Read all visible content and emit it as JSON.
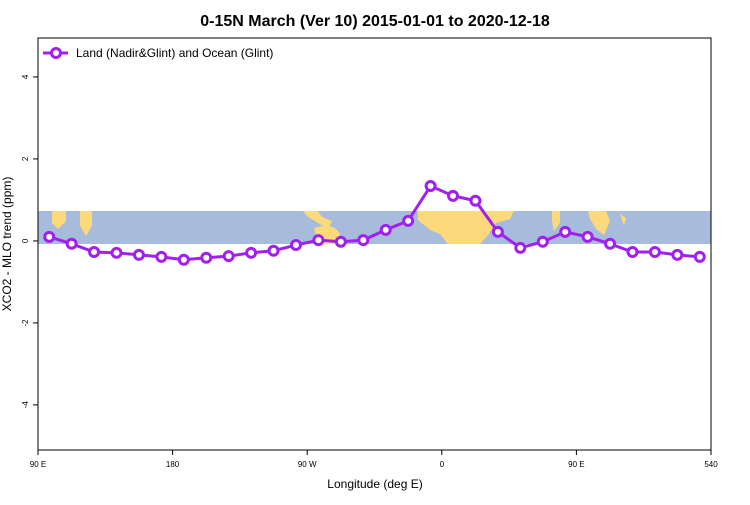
{
  "chart_data": {
    "type": "line",
    "title": "0-15N March (Ver 10)   2015-01-01 to 2020-12-18",
    "x_label": "Longitude (deg E)",
    "y_label": "XCO2 - MLO trend (ppm)",
    "x": [
      97.5,
      112.5,
      127.5,
      142.5,
      157.5,
      172.5,
      187.5,
      202.5,
      217.5,
      232.5,
      247.5,
      262.5,
      277.5,
      292.5,
      307.5,
      322.5,
      337.5,
      352.5,
      367.5,
      382.5,
      397.5,
      412.5,
      427.5,
      442.5,
      457.5,
      472.5,
      487.5,
      502.5,
      517.5,
      532.5
    ],
    "series": [
      {
        "name": "Land (Nadir&Glint) and Ocean (Glint)",
        "color": "#a020f0",
        "values": [
          0.1,
          -0.07,
          -0.27,
          -0.29,
          -0.34,
          -0.39,
          -0.46,
          -0.41,
          -0.37,
          -0.29,
          -0.24,
          -0.1,
          0.02,
          -0.02,
          0.02,
          0.27,
          0.49,
          1.34,
          1.1,
          0.98,
          0.22,
          -0.17,
          -0.02,
          0.22,
          0.1,
          -0.07,
          -0.27,
          -0.27,
          -0.34,
          -0.39
        ]
      }
    ],
    "xlim": [
      90,
      540
    ],
    "xticks": [
      {
        "value": 90,
        "label": "90 E"
      },
      180,
      {
        "value": 270,
        "label": "90 W"
      },
      {
        "value": 360,
        "label": "0"
      },
      {
        "value": 450,
        "label": "90 E"
      },
      540
    ],
    "ylim": [
      -5.1,
      4.95
    ],
    "yticks": [
      -4,
      -2,
      0,
      2,
      4
    ],
    "legend": "top-left"
  }
}
